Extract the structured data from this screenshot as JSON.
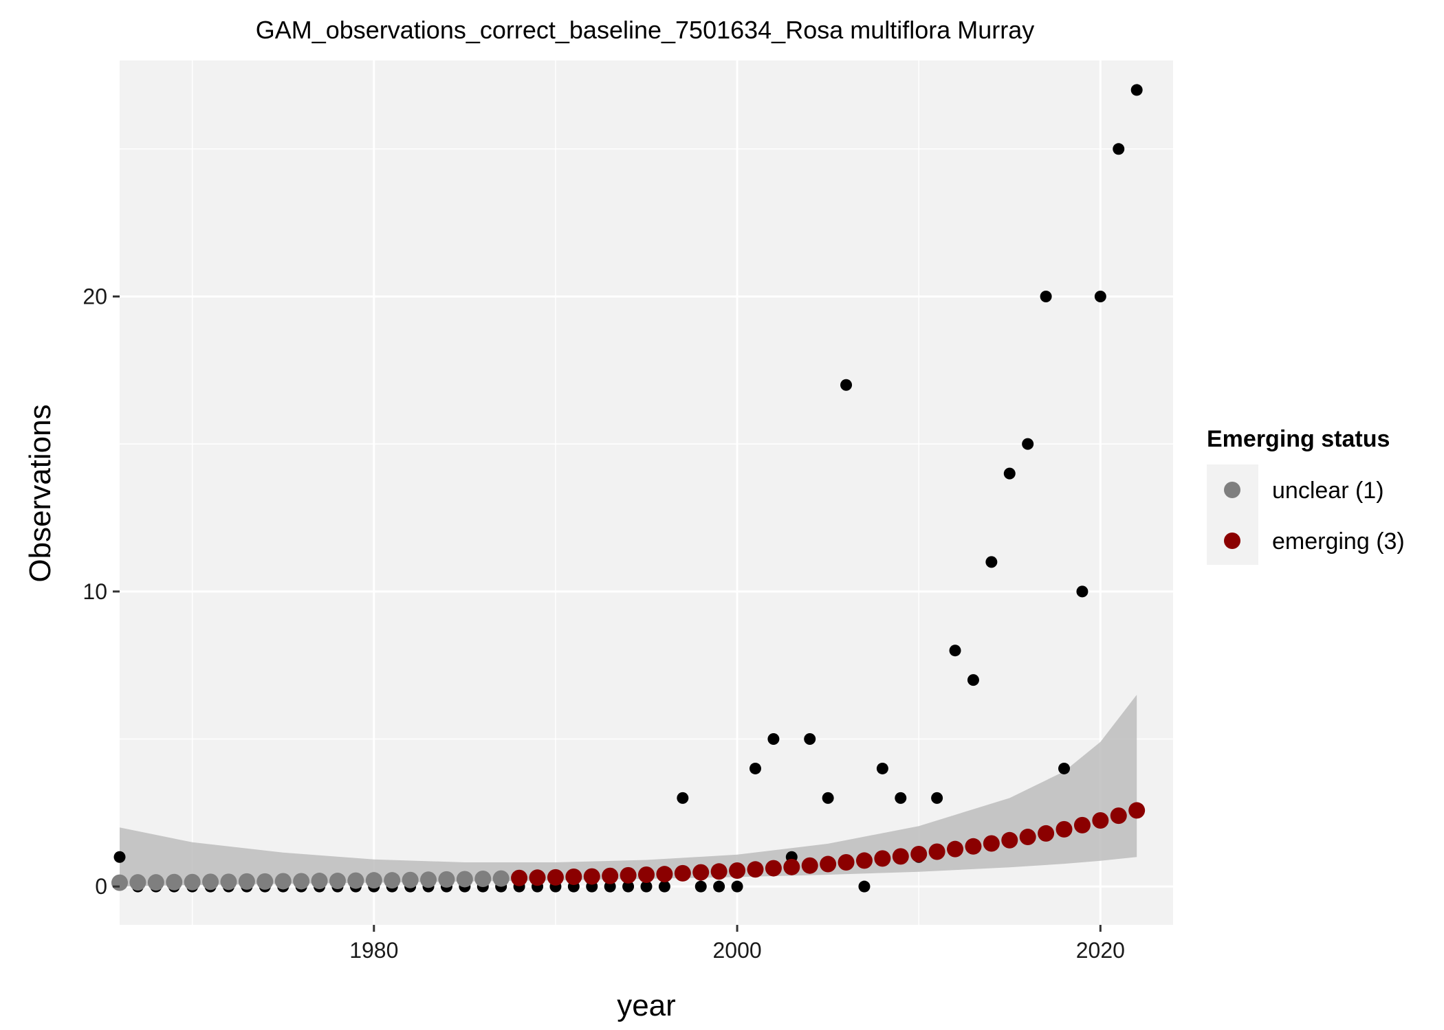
{
  "chart_data": {
    "type": "scatter",
    "title": "GAM_observations_correct_baseline_7501634_Rosa multiflora Murray",
    "xlabel": "year",
    "ylabel": "Observations",
    "xlim": [
      1966,
      2024
    ],
    "ylim": [
      -1.3,
      28
    ],
    "x_ticks": [
      1980,
      2000,
      2020
    ],
    "y_ticks": [
      0,
      10,
      20
    ],
    "grid": true,
    "legend": {
      "title": "Emerging status",
      "position": "right",
      "entries": [
        {
          "label": "unclear (1)",
          "color": "#7f7f7f"
        },
        {
          "label": "emerging (3)",
          "color": "#8b0000"
        }
      ]
    },
    "observations": {
      "color": "#000000",
      "x": [
        1966,
        1967,
        1968,
        1969,
        1970,
        1971,
        1972,
        1973,
        1974,
        1975,
        1976,
        1977,
        1978,
        1979,
        1980,
        1981,
        1982,
        1983,
        1984,
        1985,
        1986,
        1987,
        1988,
        1989,
        1990,
        1991,
        1992,
        1993,
        1994,
        1995,
        1996,
        1997,
        1998,
        1999,
        2000,
        2001,
        2002,
        2003,
        2004,
        2005,
        2006,
        2007,
        2008,
        2009,
        2010,
        2011,
        2012,
        2013,
        2014,
        2015,
        2016,
        2017,
        2018,
        2019,
        2020,
        2021,
        2022
      ],
      "y": [
        1,
        0,
        0,
        0,
        0,
        0,
        0,
        0,
        0,
        0,
        0,
        0,
        0,
        0,
        0,
        0,
        0,
        0,
        0,
        0,
        0,
        0,
        0,
        0,
        0,
        0,
        0,
        0,
        0,
        0,
        0,
        3,
        0,
        0,
        0,
        4,
        5,
        1,
        5,
        3,
        17,
        0,
        4,
        3,
        1,
        3,
        8,
        7,
        11,
        14,
        15,
        20,
        4,
        10,
        20,
        25,
        27
      ]
    },
    "gam_fit": {
      "x": [
        1966,
        1967,
        1968,
        1969,
        1970,
        1971,
        1972,
        1973,
        1974,
        1975,
        1976,
        1977,
        1978,
        1979,
        1980,
        1981,
        1982,
        1983,
        1984,
        1985,
        1986,
        1987,
        1988,
        1989,
        1990,
        1991,
        1992,
        1993,
        1994,
        1995,
        1996,
        1997,
        1998,
        1999,
        2000,
        2001,
        2002,
        2003,
        2004,
        2005,
        2006,
        2007,
        2008,
        2009,
        2010,
        2011,
        2012,
        2013,
        2014,
        2015,
        2016,
        2017,
        2018,
        2019,
        2020,
        2021,
        2022
      ],
      "fit": [
        0.13,
        0.14,
        0.14,
        0.15,
        0.15,
        0.16,
        0.16,
        0.17,
        0.17,
        0.18,
        0.18,
        0.19,
        0.19,
        0.2,
        0.21,
        0.21,
        0.22,
        0.23,
        0.24,
        0.25,
        0.26,
        0.27,
        0.29,
        0.3,
        0.31,
        0.33,
        0.34,
        0.36,
        0.38,
        0.4,
        0.42,
        0.45,
        0.48,
        0.51,
        0.54,
        0.58,
        0.62,
        0.66,
        0.71,
        0.76,
        0.82,
        0.88,
        0.95,
        1.02,
        1.1,
        1.18,
        1.27,
        1.36,
        1.46,
        1.57,
        1.68,
        1.8,
        1.94,
        2.08,
        2.24,
        2.4,
        2.58
      ],
      "status": [
        "unclear",
        "unclear",
        "unclear",
        "unclear",
        "unclear",
        "unclear",
        "unclear",
        "unclear",
        "unclear",
        "unclear",
        "unclear",
        "unclear",
        "unclear",
        "unclear",
        "unclear",
        "unclear",
        "unclear",
        "unclear",
        "unclear",
        "unclear",
        "unclear",
        "unclear",
        "emerging",
        "emerging",
        "emerging",
        "emerging",
        "emerging",
        "emerging",
        "emerging",
        "emerging",
        "emerging",
        "emerging",
        "emerging",
        "emerging",
        "emerging",
        "emerging",
        "emerging",
        "emerging",
        "emerging",
        "emerging",
        "emerging",
        "emerging",
        "emerging",
        "emerging",
        "emerging",
        "emerging",
        "emerging",
        "emerging",
        "emerging",
        "emerging",
        "emerging",
        "emerging",
        "emerging",
        "emerging",
        "emerging",
        "emerging",
        "emerging"
      ],
      "ci_x": [
        1966,
        1970,
        1975,
        1980,
        1985,
        1990,
        1995,
        2000,
        2005,
        2010,
        2015,
        2018,
        2020,
        2022
      ],
      "ci_lower": [
        0.0,
        0.05,
        0.09,
        0.13,
        0.17,
        0.21,
        0.26,
        0.32,
        0.4,
        0.5,
        0.65,
        0.77,
        0.87,
        1.0
      ],
      "ci_upper": [
        2.0,
        1.5,
        1.15,
        0.92,
        0.82,
        0.82,
        0.9,
        1.08,
        1.45,
        2.05,
        3.0,
        3.9,
        4.9,
        6.5
      ]
    }
  }
}
